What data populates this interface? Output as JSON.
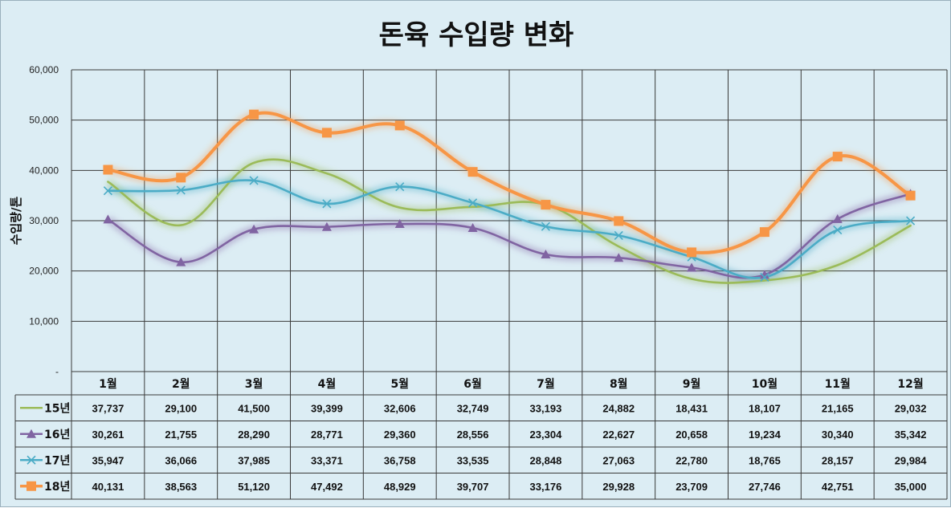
{
  "chart_data": {
    "type": "line",
    "title": "돈육 수입량 변화",
    "ylabel": "수입량/톤",
    "xlabel": "",
    "ylim": [
      0,
      60000
    ],
    "yticks": [
      "-",
      "10,000",
      "20,000",
      "30,000",
      "40,000",
      "50,000",
      "60,000"
    ],
    "grid": true,
    "legend_placement": "data-table-left",
    "smoothed": true,
    "categories": [
      "1월",
      "2월",
      "3월",
      "4월",
      "5월",
      "6월",
      "7월",
      "8월",
      "9월",
      "10월",
      "11월",
      "12월"
    ],
    "series": [
      {
        "name": "15년",
        "color": "#9bbb59",
        "marker": "none",
        "values": [
          37737,
          29100,
          41500,
          39399,
          32606,
          32749,
          33193,
          24882,
          18431,
          18107,
          21165,
          29032
        ],
        "labels": [
          "37,737",
          "29,100",
          "41,500",
          "39,399",
          "32,606",
          "32,749",
          "33,193",
          "24,882",
          "18,431",
          "18,107",
          "21,165",
          "29,032"
        ]
      },
      {
        "name": "16년",
        "color": "#8064a2",
        "marker": "triangle",
        "values": [
          30261,
          21755,
          28290,
          28771,
          29360,
          28556,
          23304,
          22627,
          20658,
          19234,
          30340,
          35342
        ],
        "labels": [
          "30,261",
          "21,755",
          "28,290",
          "28,771",
          "29,360",
          "28,556",
          "23,304",
          "22,627",
          "20,658",
          "19,234",
          "30,340",
          "35,342"
        ]
      },
      {
        "name": "17년",
        "color": "#4bacc6",
        "marker": "x",
        "values": [
          35947,
          36066,
          37985,
          33371,
          36758,
          33535,
          28848,
          27063,
          22780,
          18765,
          28157,
          29984
        ],
        "labels": [
          "35,947",
          "36,066",
          "37,985",
          "33,371",
          "36,758",
          "33,535",
          "28,848",
          "27,063",
          "22,780",
          "18,765",
          "28,157",
          "29,984"
        ]
      },
      {
        "name": "18년",
        "color": "#f79646",
        "marker": "square",
        "values": [
          40131,
          38563,
          51120,
          47492,
          48929,
          39707,
          33176,
          29928,
          23709,
          27746,
          42751,
          35000
        ],
        "labels": [
          "40,131",
          "38,563",
          "51,120",
          "47,492",
          "48,929",
          "39,707",
          "33,176",
          "29,928",
          "23,709",
          "27,746",
          "42,751",
          "35,000"
        ]
      }
    ]
  }
}
